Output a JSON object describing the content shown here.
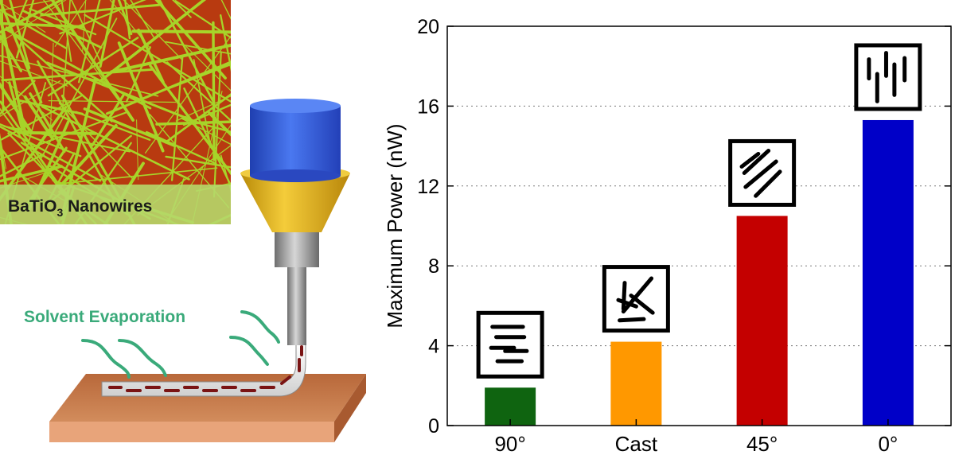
{
  "illustration": {
    "micrograph_label_main": "BaTiO",
    "micrograph_label_sub": "3",
    "micrograph_label_tail": " Nanowires",
    "process_label": "Solvent Evaporation",
    "colors": {
      "micrograph_bg": "#b83a10",
      "nanowire": "#a6e22c",
      "label_band": "#b6d86a",
      "label_text": "#1a1a1a",
      "process_text": "#3aaa7a",
      "nozzle_cap": "#2f5ad8",
      "funnel": "#e2b21a",
      "needle": "#9a9a9a",
      "substrate": "#c97a4e",
      "fiber_dash": "#7a1414"
    }
  },
  "chart_data": {
    "type": "bar",
    "categories": [
      "90°",
      "Cast",
      "45°",
      "0°"
    ],
    "values": [
      1.9,
      4.2,
      10.5,
      15.3
    ],
    "colors": [
      "#0f6410",
      "#ff9800",
      "#c40000",
      "#0000c8"
    ],
    "insets": [
      "horizontal-wires",
      "random-wires",
      "diagonal-wires",
      "vertical-wires"
    ],
    "ylabel": "Maximum Power (nW)",
    "ylim": [
      0,
      20
    ],
    "yticks": [
      "0",
      "4",
      "8",
      "12",
      "16",
      "20"
    ],
    "grid": "horizontal-dotted"
  }
}
